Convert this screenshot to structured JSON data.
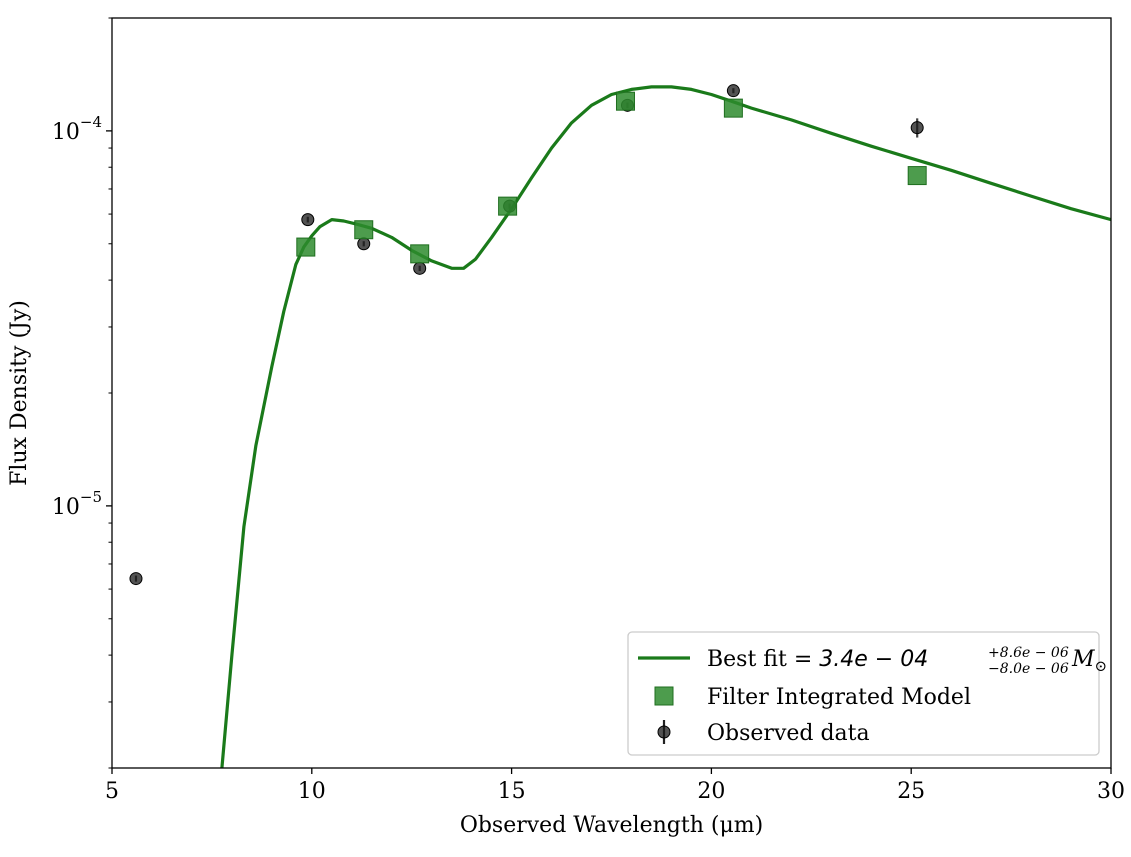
{
  "chart_data": {
    "type": "scatter",
    "xlabel": "Observed Wavelength (μm)",
    "ylabel": "Flux Density (Jy)",
    "xlim": [
      5,
      30
    ],
    "ylim": [
      2e-06,
      0.0002
    ],
    "yscale": "log",
    "grid": false,
    "legend_position": "lower-right",
    "x_ticks": [
      5,
      10,
      15,
      20,
      25,
      30
    ],
    "x_tick_labels": [
      "5",
      "10",
      "15",
      "20",
      "25",
      "30"
    ],
    "y_ticks": [
      1e-05,
      0.0001
    ],
    "y_tick_labels": [
      {
        "base": "10",
        "exp": "−5"
      },
      {
        "base": "10",
        "exp": "−4"
      }
    ],
    "series": [
      {
        "name": "Best fit",
        "legend_label": {
          "prefix": "Best fit = ",
          "value": "3.4e − 04",
          "sup": "+8.6e − 06",
          "sub": "−8.0e − 06",
          "unit": "M",
          "unit_sub": "⊙"
        },
        "kind": "line",
        "color": "#1a7a1a",
        "x": [
          7.75,
          8.0,
          8.3,
          8.6,
          9.0,
          9.3,
          9.6,
          9.8,
          10.0,
          10.2,
          10.5,
          10.8,
          11.1,
          11.5,
          12.0,
          12.5,
          13.0,
          13.5,
          13.8,
          14.1,
          14.5,
          15.0,
          15.5,
          16.0,
          16.5,
          17.0,
          17.5,
          18.0,
          18.5,
          19.0,
          19.5,
          20.0,
          20.5,
          21.0,
          22.0,
          23.0,
          24.0,
          25.0,
          26.0,
          27.0,
          28.0,
          29.0,
          30.0
        ],
        "y": [
          2e-06,
          4e-06,
          8.8e-06,
          1.45e-05,
          2.35e-05,
          3.3e-05,
          4.4e-05,
          4.9e-05,
          5.25e-05,
          5.55e-05,
          5.8e-05,
          5.75e-05,
          5.65e-05,
          5.5e-05,
          5.2e-05,
          4.8e-05,
          4.5e-05,
          4.3e-05,
          4.3e-05,
          4.55e-05,
          5.2e-05,
          6.2e-05,
          7.5e-05,
          9e-05,
          0.000105,
          0.000117,
          0.000125,
          0.000129,
          0.000131,
          0.000131,
          0.000129,
          0.000125,
          0.00012,
          0.000115,
          0.000107,
          9.85e-05,
          9.1e-05,
          8.45e-05,
          7.85e-05,
          7.25e-05,
          6.7e-05,
          6.2e-05,
          5.8e-05
        ]
      },
      {
        "name": "Filter Integrated Model",
        "kind": "square-markers",
        "color": "#2e8b2e",
        "x": [
          9.85,
          11.3,
          12.7,
          14.9,
          17.85,
          20.55,
          25.15
        ],
        "y": [
          4.9e-05,
          5.45e-05,
          4.7e-05,
          6.3e-05,
          0.00012,
          0.000115,
          7.6e-05
        ]
      },
      {
        "name": "Observed data",
        "kind": "errorbar-markers",
        "color": "#1a1a1a",
        "x": [
          5.6,
          9.9,
          11.3,
          12.7,
          14.95,
          17.9,
          20.55,
          25.15
        ],
        "y": [
          6.4e-06,
          5.8e-05,
          5e-05,
          4.3e-05,
          6.3e-05,
          0.000117,
          0.000128,
          0.000102
        ],
        "yerr": [
          1.2e-07,
          1e-06,
          8e-07,
          7e-07,
          1e-06,
          2e-06,
          2e-06,
          6e-06
        ]
      }
    ]
  }
}
